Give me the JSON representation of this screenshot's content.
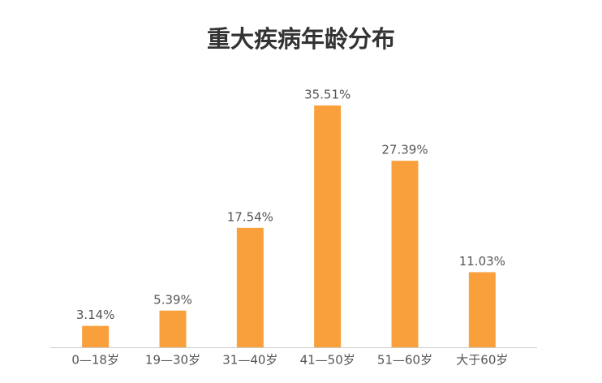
{
  "chart_data": {
    "type": "bar",
    "title": "重大疾病年龄分布",
    "categories": [
      "0—18岁",
      "19—30岁",
      "31—40岁",
      "41—50岁",
      "51—60岁",
      "大于60岁"
    ],
    "values": [
      3.14,
      5.39,
      17.54,
      35.51,
      27.39,
      11.03
    ],
    "value_labels": [
      "3.14%",
      "5.39%",
      "17.54%",
      "35.51%",
      "27.39%",
      "11.03%"
    ],
    "color": "#f9a03c"
  }
}
